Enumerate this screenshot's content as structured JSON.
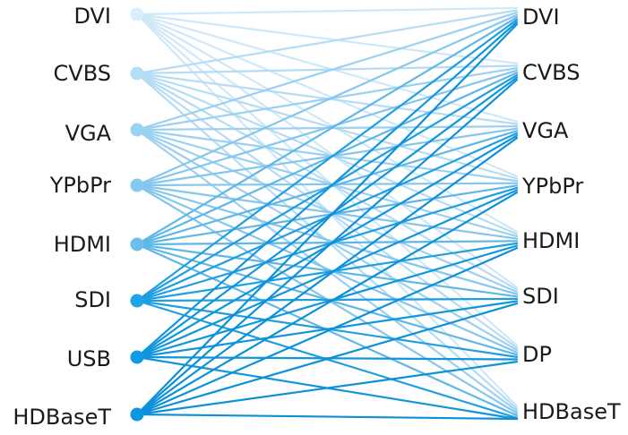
{
  "diagram": {
    "inputs": [
      "DVI",
      "CVBS",
      "VGA",
      "YPbPr",
      "HDMI",
      "SDI",
      "USB",
      "HDBaseT"
    ],
    "outputs": [
      "DVI",
      "CVBS",
      "VGA",
      "YPbPr",
      "HDMI",
      "SDI",
      "DP",
      "HDBaseT"
    ],
    "colors": {
      "node_gradient": [
        "#d8eefb",
        "#b6def6",
        "#9ad2f2",
        "#85c9ef",
        "#6dbfeb",
        "#1fa3e6",
        "#0e9be3",
        "#0a97e0"
      ],
      "line_gradient": [
        "#cfe8f8",
        "#b5dcf4",
        "#9bd0f0",
        "#84c6ec",
        "#5fb7e8",
        "#1f9ee0",
        "#1195dc",
        "#0c90d8"
      ]
    },
    "connections": "all-to-all"
  }
}
